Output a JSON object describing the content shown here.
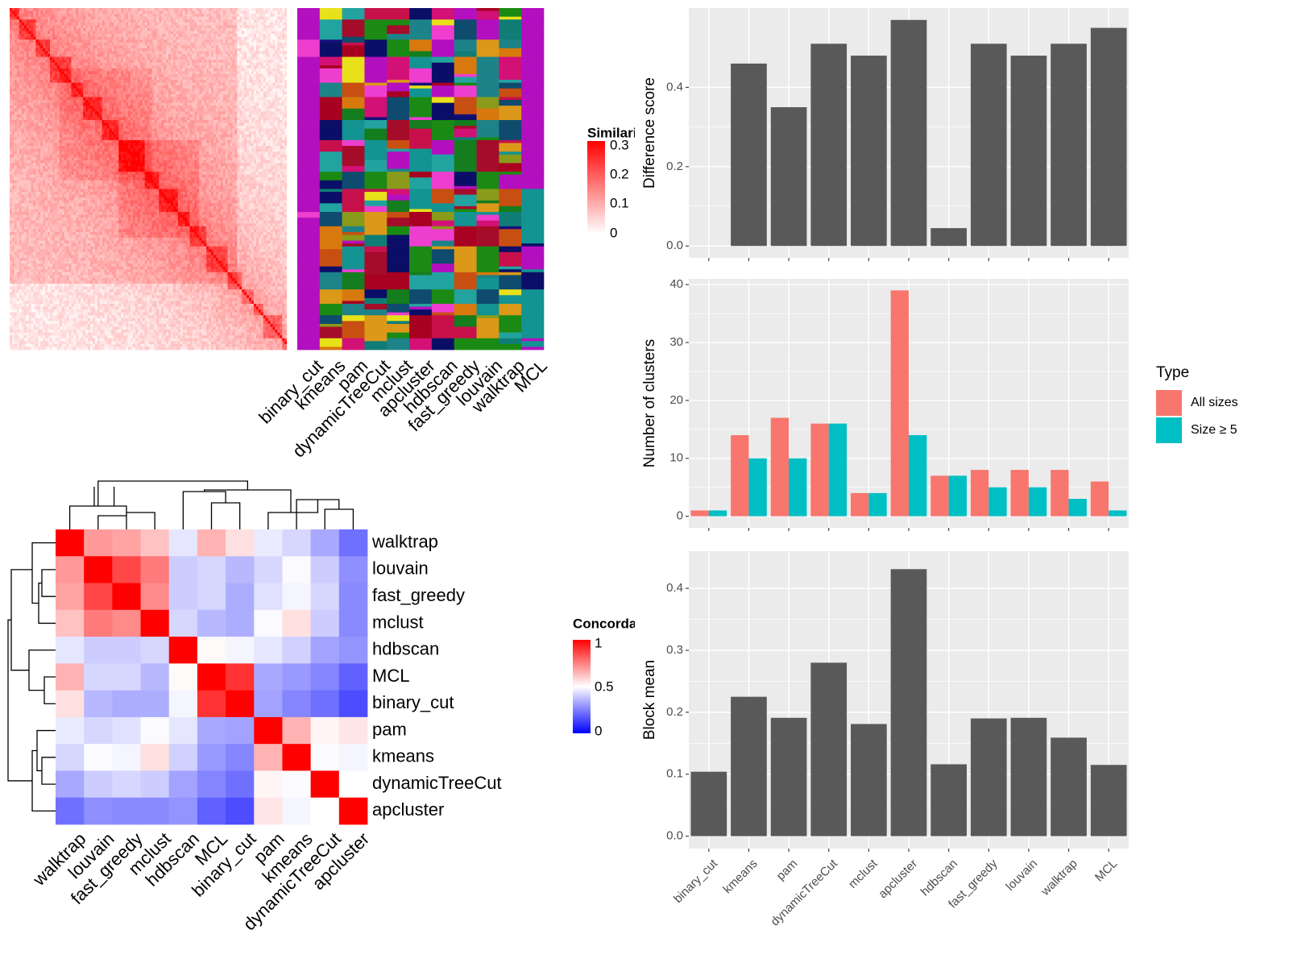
{
  "chart_data": [
    {
      "type": "heatmap",
      "panel": "similarity-heatmap",
      "legend_title": "Similarity",
      "legend_ticks": [
        "0.3",
        "0.2",
        "0.1",
        "0"
      ],
      "color_scale": [
        "#ffffff",
        "#ff0000"
      ],
      "block_sizes": [
        4,
        7,
        6,
        9,
        5,
        8,
        7,
        11,
        6,
        8,
        5,
        7,
        9,
        6,
        5,
        4,
        8,
        4
      ],
      "n_terms": 119,
      "methods": [
        "binary_cut",
        "kmeans",
        "pam",
        "dynamicTreeCut",
        "mclust",
        "apcluster",
        "hdbscan",
        "fast_greedy",
        "louvain",
        "walktrap",
        "MCL"
      ],
      "cluster_palette": [
        "#b30fbf",
        "#ee3ecf",
        "#0b0e66",
        "#16107b",
        "#1d8389",
        "#139392",
        "#22a3a0",
        "#0f7d76",
        "#dc9818",
        "#d8790e",
        "#c84f12",
        "#1b8a14",
        "#147d1e",
        "#a50c2a",
        "#c7104b",
        "#e8e11a",
        "#8a9a1a",
        "#0f4b6e",
        "#d31075",
        "#a80021"
      ]
    },
    {
      "type": "heatmap",
      "panel": "concordance-heatmap",
      "legend_title": "Concordance",
      "legend_ticks": [
        "1",
        "0.5",
        "0"
      ],
      "color_scale": [
        "#0000ff",
        "#ffffff",
        "#ff0000"
      ],
      "rows": [
        "walktrap",
        "louvain",
        "fast_greedy",
        "mclust",
        "hdbscan",
        "MCL",
        "binary_cut",
        "pam",
        "kmeans",
        "dynamicTreeCut",
        "apcluster"
      ],
      "columns": [
        "walktrap",
        "louvain",
        "fast_greedy",
        "mclust",
        "hdbscan",
        "MCL",
        "binary_cut",
        "pam",
        "kmeans",
        "dynamicTreeCut",
        "apcluster"
      ],
      "values": [
        [
          1.0,
          0.7,
          0.68,
          0.62,
          0.45,
          0.65,
          0.56,
          0.46,
          0.42,
          0.33,
          0.22
        ],
        [
          0.7,
          1.0,
          0.86,
          0.76,
          0.4,
          0.42,
          0.36,
          0.42,
          0.49,
          0.4,
          0.28
        ],
        [
          0.68,
          0.86,
          1.0,
          0.73,
          0.4,
          0.42,
          0.34,
          0.44,
          0.48,
          0.42,
          0.27
        ],
        [
          0.62,
          0.76,
          0.73,
          1.0,
          0.42,
          0.36,
          0.34,
          0.49,
          0.56,
          0.4,
          0.27
        ],
        [
          0.45,
          0.4,
          0.4,
          0.42,
          1.0,
          0.51,
          0.48,
          0.45,
          0.41,
          0.32,
          0.29
        ],
        [
          0.65,
          0.42,
          0.42,
          0.36,
          0.51,
          1.0,
          0.9,
          0.33,
          0.3,
          0.26,
          0.19
        ],
        [
          0.56,
          0.36,
          0.34,
          0.34,
          0.48,
          0.9,
          1.0,
          0.32,
          0.26,
          0.22,
          0.15
        ],
        [
          0.46,
          0.42,
          0.44,
          0.49,
          0.45,
          0.33,
          0.32,
          1.0,
          0.65,
          0.52,
          0.55
        ],
        [
          0.42,
          0.49,
          0.48,
          0.56,
          0.41,
          0.3,
          0.26,
          0.65,
          1.0,
          0.49,
          0.48
        ],
        [
          0.33,
          0.4,
          0.42,
          0.4,
          0.32,
          0.26,
          0.22,
          0.52,
          0.49,
          1.0,
          0.5
        ],
        [
          0.22,
          0.28,
          0.27,
          0.27,
          0.29,
          0.19,
          0.15,
          0.55,
          0.48,
          0.5,
          1.0
        ]
      ]
    },
    {
      "type": "bar",
      "panel": "difference-score",
      "categories": [
        "binary_cut",
        "kmeans",
        "pam",
        "dynamicTreeCut",
        "mclust",
        "apcluster",
        "hdbscan",
        "fast_greedy",
        "louvain",
        "walktrap",
        "MCL"
      ],
      "values": [
        0.0,
        0.46,
        0.35,
        0.51,
        0.48,
        0.57,
        0.045,
        0.51,
        0.48,
        0.51,
        0.55
      ],
      "ylabel": "Difference score",
      "ylim": [
        -0.03,
        0.6
      ],
      "yticks": [
        0.0,
        0.2,
        0.4
      ],
      "ytick_labels": [
        "0.0",
        "0.2",
        "0.4"
      ],
      "grid": true,
      "bar_color": "#595959"
    },
    {
      "type": "bar",
      "panel": "number-of-clusters",
      "categories": [
        "binary_cut",
        "kmeans",
        "pam",
        "dynamicTreeCut",
        "mclust",
        "apcluster",
        "hdbscan",
        "fast_greedy",
        "louvain",
        "walktrap",
        "MCL"
      ],
      "series": [
        {
          "name": "All sizes",
          "color": "#f8766d",
          "values": [
            1,
            14,
            17,
            16,
            4,
            39,
            7,
            8,
            8,
            8,
            6
          ]
        },
        {
          "name": "Size ≥ 5",
          "color": "#00bfc4",
          "values": [
            1,
            10,
            10,
            16,
            4,
            14,
            7,
            5,
            5,
            3,
            1
          ]
        }
      ],
      "ylabel": "Number of clusters",
      "ylim": [
        -2,
        41
      ],
      "yticks": [
        0,
        10,
        20,
        30,
        40
      ],
      "ytick_labels": [
        "0",
        "10",
        "20",
        "30",
        "40"
      ],
      "legend_title": "Type",
      "legend_position": "right",
      "grid": true
    },
    {
      "type": "bar",
      "panel": "block-mean",
      "categories": [
        "binary_cut",
        "kmeans",
        "pam",
        "dynamicTreeCut",
        "mclust",
        "apcluster",
        "hdbscan",
        "fast_greedy",
        "louvain",
        "walktrap",
        "MCL"
      ],
      "values": [
        0.104,
        0.225,
        0.191,
        0.28,
        0.181,
        0.431,
        0.116,
        0.19,
        0.191,
        0.159,
        0.115
      ],
      "ylabel": "Block mean",
      "ylim": [
        -0.02,
        0.46
      ],
      "yticks": [
        0.0,
        0.1,
        0.2,
        0.3,
        0.4
      ],
      "ytick_labels": [
        "0.0",
        "0.1",
        "0.2",
        "0.3",
        "0.4"
      ],
      "grid": true,
      "bar_color": "#595959"
    }
  ]
}
